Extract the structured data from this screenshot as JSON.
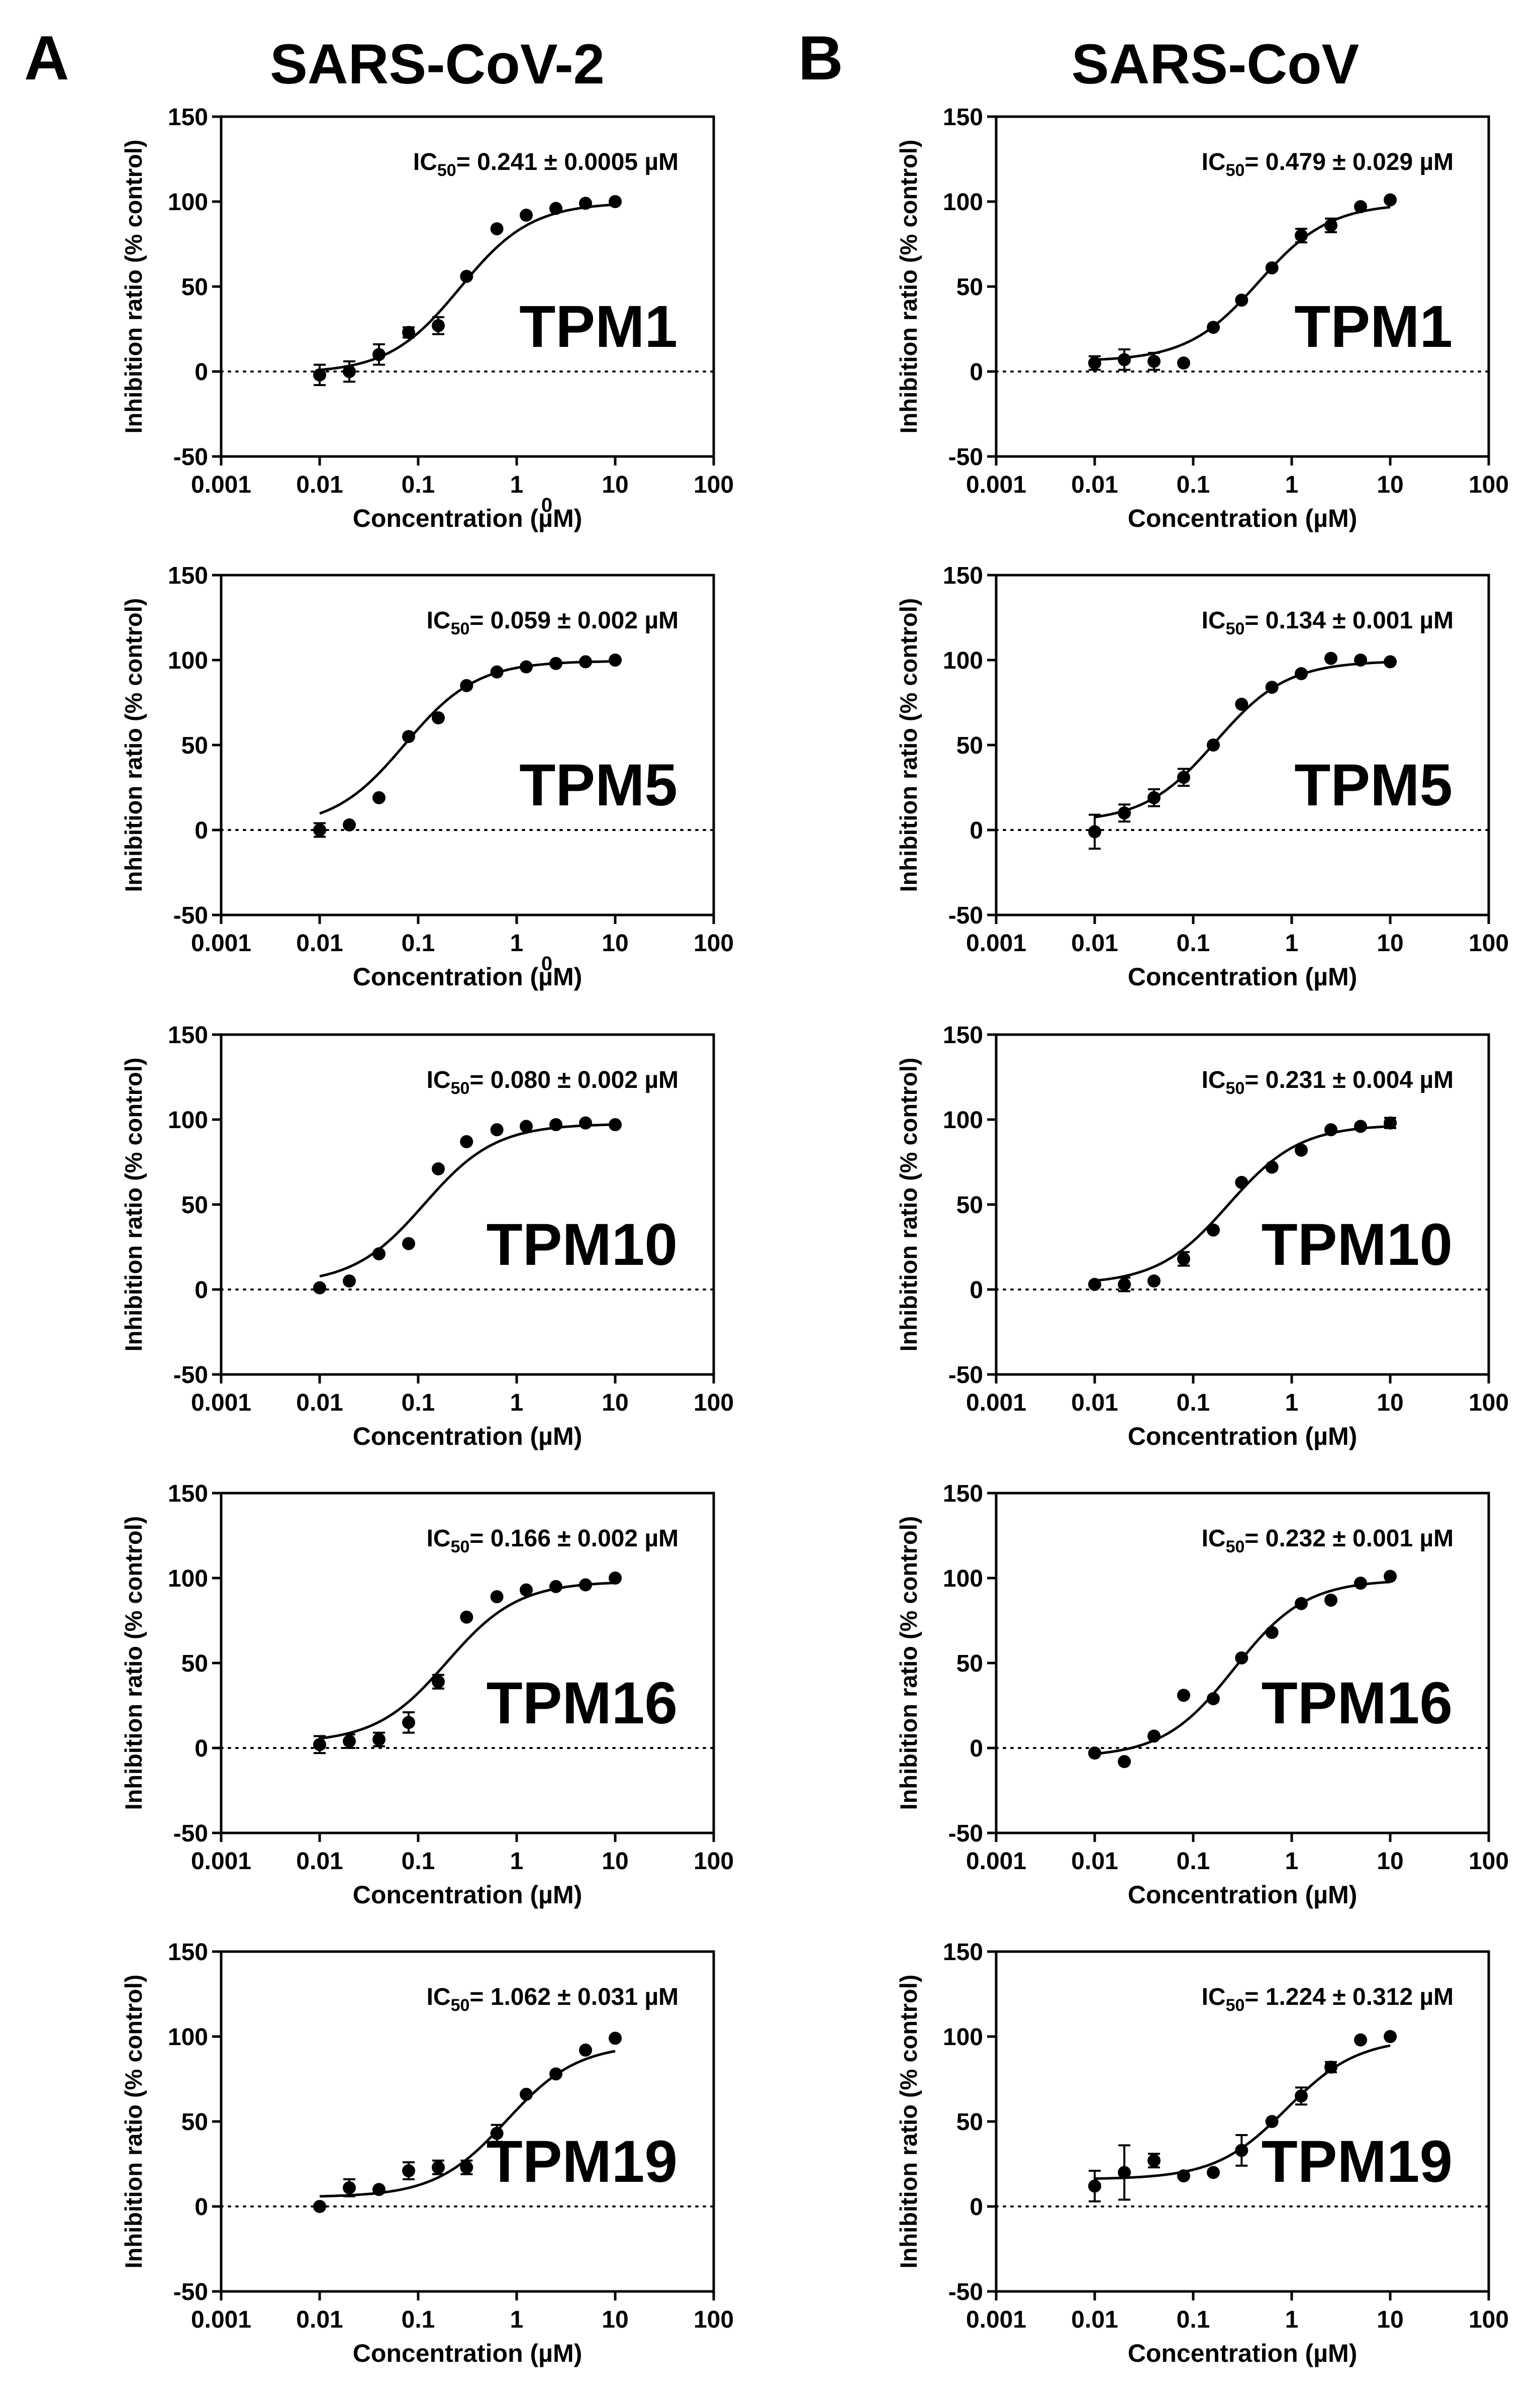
{
  "panels": [
    {
      "letter": "A",
      "title": "SARS-CoV-2"
    },
    {
      "letter": "B",
      "title": "SARS-CoV"
    }
  ],
  "axes": {
    "xlabel": "Concentration (µM)",
    "ylabel": "Inhibition ratio (% control)",
    "x_scale": "log",
    "xlim": [
      0.001,
      100
    ],
    "ylim": [
      -50,
      150
    ],
    "x_ticks": [
      "0.001",
      "0.01",
      "0.1",
      "1",
      "10",
      "100"
    ],
    "y_ticks": [
      "150",
      "100",
      "50",
      "0",
      "-50"
    ],
    "zero_line": "dotted",
    "grid": false
  },
  "ic50_prefix": "IC",
  "ic50_subscript": "50",
  "chart_data": [
    {
      "type": "scatter",
      "panel": "A",
      "compound": "TPM1",
      "ic50": "= 0.241 ± 0.0005 µM",
      "stray_tick": "0",
      "x": [
        0.01,
        0.02,
        0.04,
        0.08,
        0.16,
        0.31,
        0.63,
        1.25,
        2.5,
        5,
        10
      ],
      "y": [
        -2,
        0,
        10,
        23,
        27,
        56,
        84,
        92,
        96,
        99,
        100
      ],
      "err": [
        6,
        6,
        6,
        3,
        5,
        1,
        1,
        1,
        1,
        1,
        1
      ]
    },
    {
      "type": "scatter",
      "panel": "B",
      "compound": "TPM1",
      "ic50": "= 0.479 ± 0.029 µM",
      "stray_tick": "",
      "x": [
        0.01,
        0.02,
        0.04,
        0.08,
        0.16,
        0.31,
        0.63,
        1.25,
        2.5,
        5,
        10
      ],
      "y": [
        5,
        7,
        6,
        5,
        26,
        42,
        61,
        80,
        86,
        97,
        101
      ],
      "err": [
        4,
        6,
        5,
        1,
        1,
        1,
        1,
        4,
        4,
        1,
        1
      ]
    },
    {
      "type": "scatter",
      "panel": "A",
      "compound": "TPM5",
      "ic50": "= 0.059 ± 0.002 µM",
      "stray_tick": "0",
      "x": [
        0.01,
        0.02,
        0.04,
        0.08,
        0.16,
        0.31,
        0.63,
        1.25,
        2.5,
        5,
        10
      ],
      "y": [
        0,
        3,
        19,
        55,
        66,
        85,
        93,
        96,
        98,
        99,
        100
      ],
      "err": [
        4,
        1,
        1,
        1,
        1,
        1,
        1,
        1,
        1,
        1,
        1
      ]
    },
    {
      "type": "scatter",
      "panel": "B",
      "compound": "TPM5",
      "ic50": "= 0.134 ± 0.001 µM",
      "stray_tick": "",
      "x": [
        0.01,
        0.02,
        0.04,
        0.08,
        0.16,
        0.31,
        0.63,
        1.25,
        2.5,
        5,
        10
      ],
      "y": [
        -1,
        10,
        19,
        31,
        50,
        74,
        84,
        92,
        101,
        100,
        99
      ],
      "err": [
        10,
        5,
        5,
        5,
        1,
        1,
        1,
        1,
        1,
        1,
        1
      ]
    },
    {
      "type": "scatter",
      "panel": "A",
      "compound": "TPM10",
      "ic50": "= 0.080 ± 0.002 µM",
      "stray_tick": "",
      "x": [
        0.01,
        0.02,
        0.04,
        0.08,
        0.16,
        0.31,
        0.63,
        1.25,
        2.5,
        5,
        10
      ],
      "y": [
        1,
        5,
        21,
        27,
        71,
        87,
        94,
        96,
        97,
        98,
        97
      ],
      "err": [
        1,
        1,
        1,
        1,
        1,
        1,
        1,
        1,
        1,
        1,
        1
      ]
    },
    {
      "type": "scatter",
      "panel": "B",
      "compound": "TPM10",
      "ic50": "= 0.231 ± 0.004 µM",
      "stray_tick": "",
      "x": [
        0.01,
        0.02,
        0.04,
        0.08,
        0.16,
        0.31,
        0.63,
        1.25,
        2.5,
        5,
        10
      ],
      "y": [
        3,
        3,
        5,
        18,
        35,
        63,
        72,
        82,
        94,
        96,
        98
      ],
      "err": [
        1,
        4,
        1,
        4,
        1,
        1,
        1,
        1,
        1,
        1,
        3
      ]
    },
    {
      "type": "scatter",
      "panel": "A",
      "compound": "TPM16",
      "ic50": "= 0.166 ± 0.002 µM",
      "stray_tick": "",
      "x": [
        0.01,
        0.02,
        0.04,
        0.08,
        0.16,
        0.31,
        0.63,
        1.25,
        2.5,
        5,
        10
      ],
      "y": [
        2,
        4,
        5,
        15,
        39,
        77,
        89,
        93,
        95,
        96,
        100
      ],
      "err": [
        5,
        4,
        4,
        6,
        4,
        1,
        1,
        1,
        1,
        1,
        1
      ]
    },
    {
      "type": "scatter",
      "panel": "B",
      "compound": "TPM16",
      "ic50": "= 0.232 ± 0.001 µM",
      "stray_tick": "",
      "x": [
        0.01,
        0.02,
        0.04,
        0.08,
        0.16,
        0.31,
        0.63,
        1.25,
        2.5,
        5,
        10
      ],
      "y": [
        -3,
        -8,
        7,
        31,
        29,
        53,
        68,
        85,
        87,
        97,
        101
      ],
      "err": [
        1,
        1,
        1,
        1,
        1,
        1,
        1,
        1,
        1,
        1,
        1
      ]
    },
    {
      "type": "scatter",
      "panel": "A",
      "compound": "TPM19",
      "ic50": "= 1.062 ± 0.031 µM",
      "stray_tick": "",
      "x": [
        0.01,
        0.02,
        0.04,
        0.08,
        0.16,
        0.31,
        0.63,
        1.25,
        2.5,
        5,
        10
      ],
      "y": [
        0,
        11,
        10,
        21,
        23,
        23,
        43,
        66,
        78,
        92,
        99
      ],
      "err": [
        1,
        5,
        1,
        5,
        4,
        4,
        5,
        1,
        1,
        1,
        1
      ]
    },
    {
      "type": "scatter",
      "panel": "B",
      "compound": "TPM19",
      "ic50": "= 1.224 ± 0.312 µM",
      "stray_tick": "",
      "x": [
        0.01,
        0.02,
        0.04,
        0.08,
        0.16,
        0.31,
        0.63,
        1.25,
        2.5,
        5,
        10
      ],
      "y": [
        12,
        20,
        27,
        18,
        20,
        33,
        50,
        65,
        82,
        98,
        100
      ],
      "err": [
        9,
        16,
        4,
        1,
        1,
        9,
        1,
        5,
        3,
        1,
        1
      ]
    }
  ]
}
